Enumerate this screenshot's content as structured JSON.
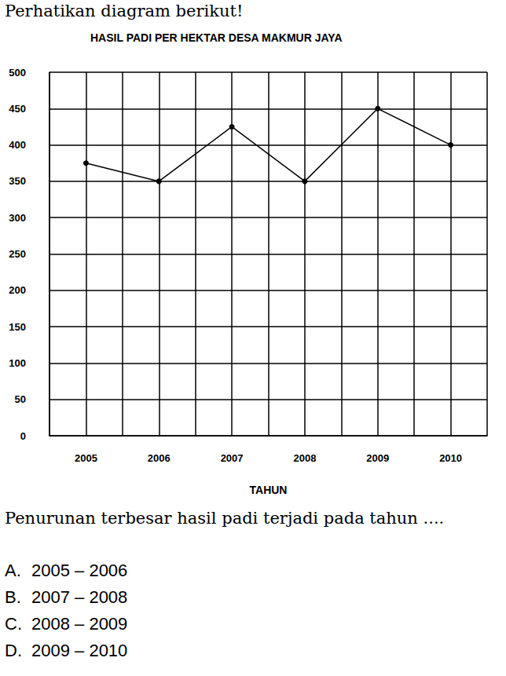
{
  "header": "Perhatikan diagram berikut!",
  "chart_data": {
    "type": "line",
    "title": "HASIL PADI PER HEKTAR DESA MAKMUR JAYA",
    "x_label": "TAHUN",
    "categories": [
      "2005",
      "2006",
      "2007",
      "2008",
      "2009",
      "2010"
    ],
    "values": [
      375,
      350,
      425,
      350,
      450,
      400
    ],
    "color": "#000000",
    "marker": "circle",
    "ylim": [
      0,
      500
    ],
    "yticks": [
      0,
      50,
      100,
      150,
      200,
      250,
      300,
      350,
      400,
      450,
      500
    ],
    "grid": true
  },
  "question": "Penurunan terbesar hasil padi terjadi pada tahun ....",
  "options": [
    {
      "letter": "A.",
      "text": "2005 – 2006"
    },
    {
      "letter": "B.",
      "text": "2007 – 2008"
    },
    {
      "letter": "C.",
      "text": "2008 – 2009"
    },
    {
      "letter": "D.",
      "text": "2009 – 2010"
    }
  ]
}
